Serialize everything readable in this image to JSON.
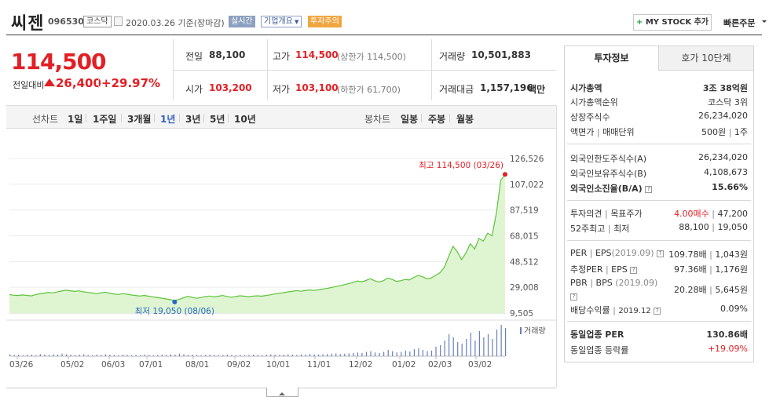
{
  "header": {
    "name": "씨젠",
    "code": "096530",
    "market": "코스닥",
    "date_text": "2020.03.26 기준(장마감)",
    "realtime": "실시간",
    "company_overview": "기업개요",
    "warning": "투자주의",
    "mystock_label": "MY STOCK 추가",
    "quick_order": "빠른주문"
  },
  "price": {
    "current": "114,500",
    "prev_label": "전일대비",
    "change": "26,400",
    "change_pct": "+29.97%"
  },
  "quote": {
    "prev_close_label": "전일",
    "prev_close": "88,100",
    "high_label": "고가",
    "high": "114,500",
    "high_note": "(상한가 114,500)",
    "volume_label": "거래량",
    "volume": "10,501,883",
    "open_label": "시가",
    "open": "103,200",
    "low_label": "저가",
    "low": "103,100",
    "low_note": "(하한가 61,700)",
    "amount_label": "거래대금",
    "amount": "1,157,196",
    "amount_unit": "백만"
  },
  "period_bar": {
    "line_label": "선차트",
    "periods": [
      "1일",
      "1주일",
      "3개월",
      "1년",
      "3년",
      "5년",
      "10년"
    ],
    "active_period": "1년",
    "candle_label": "봉차트",
    "candles": [
      "일봉",
      "주봉",
      "월봉"
    ]
  },
  "chart_data": {
    "type": "area",
    "x_ticks": [
      "03/26",
      "05/02",
      "06/03",
      "07/01",
      "08/01",
      "09/02",
      "10/01",
      "11/01",
      "12/02",
      "01/02",
      "02/03",
      "03/02"
    ],
    "y_ticks": [
      126526,
      107022,
      87519,
      68015,
      48512,
      29008,
      9505
    ],
    "ylim": [
      9505,
      126526
    ],
    "series": [
      {
        "values": [
          23500,
          23000,
          22800,
          23200,
          22900,
          22500,
          23400,
          24100,
          24600,
          25200,
          24800,
          25500,
          26200,
          26800,
          26400,
          25900,
          26300,
          25600,
          25100,
          24700,
          24200,
          24800,
          25300,
          24600,
          24000,
          23600,
          24200,
          23800,
          23200,
          22800,
          22400,
          22900,
          22300,
          21800,
          21300,
          20800,
          20200,
          19600,
          19050,
          19800,
          21000,
          22100,
          21500,
          20700,
          21200,
          21900,
          22400,
          21800,
          22200,
          22800,
          22100,
          21500,
          22000,
          22600,
          22300,
          21900,
          22300,
          22600,
          22300,
          22800,
          23300,
          24000,
          24400,
          24900,
          25500,
          25900,
          26500,
          26000,
          26500,
          27000,
          26600,
          27100,
          27600,
          28100,
          28800,
          29500,
          30200,
          31000,
          31800,
          32600,
          33800,
          33200,
          34200,
          35500,
          34000,
          33000,
          34000,
          36000,
          35000,
          33500,
          34000,
          35000,
          34500,
          36500,
          38000,
          37000,
          35500,
          36000,
          38000,
          40000,
          44000,
          52000,
          60000,
          56000,
          50000,
          55000,
          62000,
          58000,
          66000,
          64000,
          70000,
          68000,
          85000,
          110000,
          114500
        ]
      }
    ],
    "max_label": "최고 114,500 (03/26)",
    "min_label": "최저 19,050 (08/06)",
    "max_value": 114500,
    "min_value": 19050,
    "volume_label": "거래량",
    "volume_bars": [
      0.06,
      0.04,
      0.05,
      0.03,
      0.04,
      0.05,
      0.03,
      0.07,
      0.05,
      0.04,
      0.06,
      0.05,
      0.08,
      0.06,
      0.05,
      0.04,
      0.05,
      0.06,
      0.04,
      0.03,
      0.05,
      0.04,
      0.06,
      0.05,
      0.04,
      0.03,
      0.05,
      0.04,
      0.03,
      0.04,
      0.03,
      0.05,
      0.04,
      0.03,
      0.04,
      0.05,
      0.04,
      0.06,
      0.05,
      0.08,
      0.06,
      0.04,
      0.05,
      0.04,
      0.03,
      0.04,
      0.05,
      0.04,
      0.03,
      0.04,
      0.05,
      0.04,
      0.03,
      0.04,
      0.03,
      0.04,
      0.05,
      0.04,
      0.03,
      0.05,
      0.06,
      0.05,
      0.04,
      0.05,
      0.06,
      0.05,
      0.04,
      0.06,
      0.05,
      0.07,
      0.06,
      0.05,
      0.06,
      0.07,
      0.08,
      0.09,
      0.07,
      0.08,
      0.09,
      0.1,
      0.12,
      0.1,
      0.14,
      0.16,
      0.12,
      0.1,
      0.14,
      0.2,
      0.16,
      0.12,
      0.14,
      0.18,
      0.15,
      0.22,
      0.25,
      0.2,
      0.16,
      0.18,
      0.3,
      0.35,
      0.5,
      0.7,
      0.6,
      0.45,
      0.4,
      0.55,
      0.75,
      0.5,
      0.8,
      0.6,
      0.7,
      0.55,
      0.85,
      1.0,
      0.9
    ],
    "line_color": "#5cc43a",
    "fill_color": "#dff5d2"
  },
  "info_panel": {
    "tab_active": "투자정보",
    "tab_other": "호가 10단계",
    "market_cap_label": "시가총액",
    "market_cap": "3조 38억원",
    "rank_label": "시가총액순위",
    "rank": "코스닥 3위",
    "shares_label": "상장주식수",
    "shares": "26,234,020",
    "par_label": "액면가",
    "trade_unit_label": "매매단위",
    "par": "500원",
    "trade_unit": "1주",
    "foreign_limit_label": "외국인한도주식수(A)",
    "foreign_limit": "26,234,020",
    "foreign_hold_label": "외국인보유주식수(B)",
    "foreign_hold": "4,108,673",
    "foreign_rate_label": "외국인소진율(B/A)",
    "foreign_rate": "15.66%",
    "opinion_label": "투자의견",
    "target_label": "목표주가",
    "opinion": "4.00매수",
    "target": "47,200",
    "w52_label": "52주최고",
    "w52_low_label": "최저",
    "w52_high": "88,100",
    "w52_low": "19,050",
    "per_label": "PER",
    "eps_label": "EPS",
    "per_year": "(2019.09)",
    "per": "109.78배",
    "eps": "1,043원",
    "est_per_label": "추정PER",
    "est_eps_label": "EPS",
    "est_per": "97.36배",
    "est_eps": "1,176원",
    "pbr_label": "PBR",
    "bps_label": "BPS",
    "pbr_year": "(2019.09)",
    "pbr": "20.28배",
    "bps": "5,645원",
    "dividend_label": "배당수익률",
    "dividend_year": "2019.12",
    "dividend": "0.09%",
    "sector_per_label": "동일업종 PER",
    "sector_per": "130.86배",
    "sector_change_label": "동일업종 등락률",
    "sector_change": "+19.09%"
  }
}
